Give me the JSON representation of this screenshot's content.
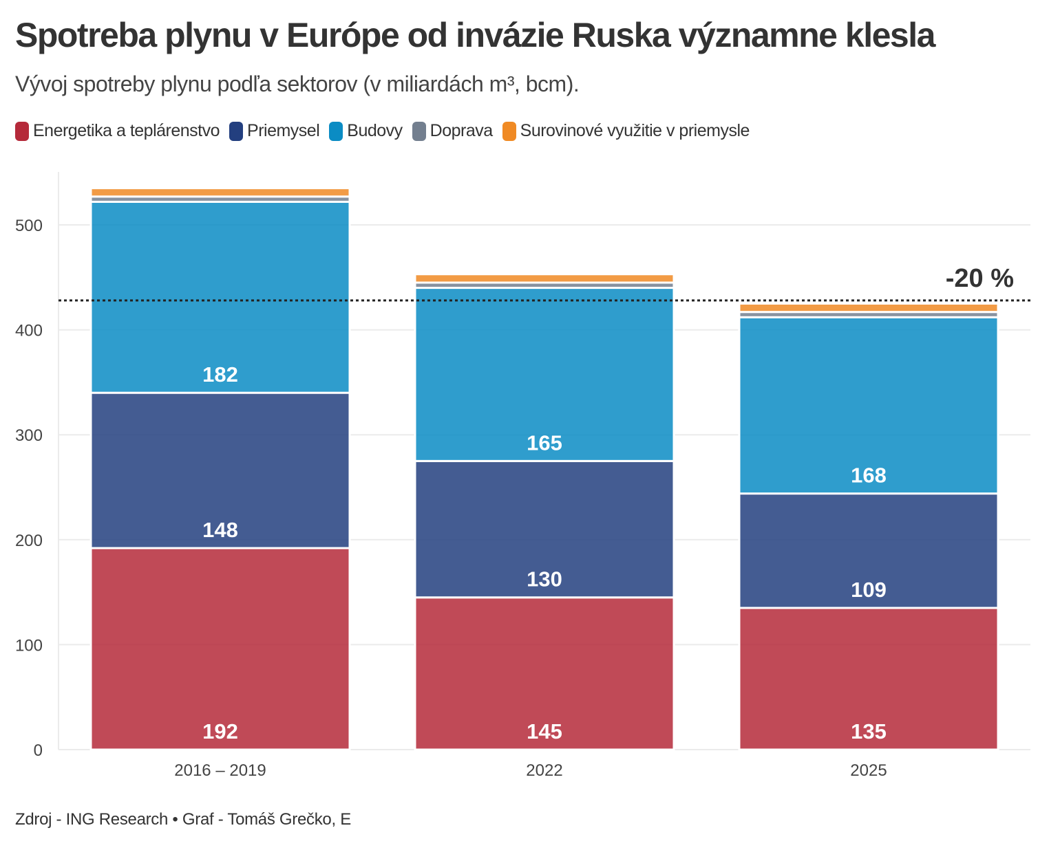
{
  "title": "Spotreba plynu v Európe od invázie Ruska významne klesla",
  "subtitle": "Vývoj spotreby plynu podľa sektorov (v miliardách m³, bcm).",
  "source": "Zdroj - ING Research • Graf - Tomáš Grečko, E",
  "chart_data": {
    "type": "bar",
    "stacked": true,
    "categories": [
      "2016 – 2019",
      "2022",
      "2025"
    ],
    "series": [
      {
        "name": "Energetika a teplárenstvo",
        "color": "#b52a3a",
        "values": [
          192,
          145,
          135
        ],
        "show_labels": true
      },
      {
        "name": "Priemysel",
        "color": "#233f7f",
        "values": [
          148,
          130,
          109
        ],
        "show_labels": true
      },
      {
        "name": "Budovy",
        "color": "#0b8cc4",
        "values": [
          182,
          165,
          168
        ],
        "show_labels": true
      },
      {
        "name": "Doprava",
        "color": "#737f8f",
        "values": [
          5,
          5,
          5
        ],
        "show_labels": false
      },
      {
        "name": "Surovinové využitie v priemysle",
        "color": "#f08a24",
        "values": [
          8,
          8,
          8
        ],
        "show_labels": false
      }
    ],
    "yticks": [
      0,
      100,
      200,
      300,
      400,
      500
    ],
    "ylim": [
      0,
      550
    ],
    "reference_line": {
      "value": 428,
      "label": "-20 %"
    },
    "xlabel": "",
    "ylabel": "",
    "grid": true
  }
}
